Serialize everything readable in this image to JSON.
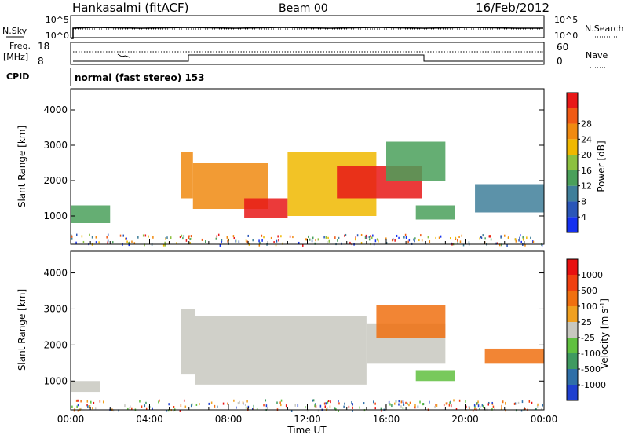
{
  "header": {
    "station": "Hankasalmi (fitACF)",
    "beam": "Beam 00",
    "date": "16/Feb/2012"
  },
  "top_panels": {
    "nsky_label": "N.Sky",
    "nsearch_label": "N.Search",
    "noise_tick_hi": "10^5",
    "noise_tick_lo": "10^0",
    "freq_label": "Freq.",
    "freq_unit": "[MHz]",
    "freq_tick_hi": "18",
    "freq_tick_lo": "8",
    "nave_label": "Nave",
    "nave_tick_hi": "60",
    "nave_tick_lo": "0",
    "cpid_label": "CPID",
    "cpid_text": "normal (fast stereo) 153"
  },
  "colors": {
    "velocity_ground": "#c8c8c0",
    "frame": "#000000"
  },
  "chart_data": [
    {
      "type": "heatmap",
      "panel": "power",
      "ylabel": "Slant Range [km]",
      "xlabel": "",
      "yticks": [
        "1000",
        "2000",
        "3000",
        "4000"
      ],
      "ylim": [
        200,
        4600
      ],
      "xlim": [
        0,
        24
      ],
      "colorbar": {
        "label": "Power [dB]",
        "ticks": [
          "4",
          "8",
          "12",
          "16",
          "20",
          "24",
          "28"
        ],
        "colors": [
          "#1430f0",
          "#2a56b8",
          "#3f7f9a",
          "#4aa05a",
          "#8cc040",
          "#f0b800",
          "#f08a10",
          "#f05a14",
          "#e81818"
        ]
      },
      "regions": [
        {
          "t0": 0.0,
          "t1": 2.0,
          "r0": 800,
          "r1": 1300,
          "level": 3
        },
        {
          "t0": 5.6,
          "t1": 6.2,
          "r0": 1500,
          "r1": 2800,
          "level": 6
        },
        {
          "t0": 6.2,
          "t1": 10.0,
          "r0": 1200,
          "r1": 2500,
          "level": 6
        },
        {
          "t0": 8.8,
          "t1": 11.0,
          "r0": 950,
          "r1": 1500,
          "level": 8
        },
        {
          "t0": 11.0,
          "t1": 15.5,
          "r0": 1000,
          "r1": 2800,
          "level": 5
        },
        {
          "t0": 13.5,
          "t1": 17.8,
          "r0": 1500,
          "r1": 2400,
          "level": 8
        },
        {
          "t0": 16.0,
          "t1": 19.0,
          "r0": 2000,
          "r1": 3100,
          "level": 3
        },
        {
          "t0": 17.5,
          "t1": 19.5,
          "r0": 900,
          "r1": 1300,
          "level": 3
        },
        {
          "t0": 20.5,
          "t1": 24.0,
          "r0": 1100,
          "r1": 1900,
          "level": 2
        }
      ]
    },
    {
      "type": "heatmap",
      "panel": "velocity",
      "ylabel": "Slant Range [km]",
      "xlabel": "Time UT",
      "xticks": [
        "00:00",
        "04:00",
        "08:00",
        "12:00",
        "16:00",
        "20:00",
        "00:00"
      ],
      "yticks": [
        "1000",
        "2000",
        "3000",
        "4000"
      ],
      "ylim": [
        200,
        4600
      ],
      "xlim": [
        0,
        24
      ],
      "colorbar": {
        "label": "Velocity [m s",
        "label_sup": "-1",
        "label_end": "]",
        "ticks": [
          "1000",
          "500",
          "100",
          "25",
          "-25",
          "-100",
          "-500",
          "-1000"
        ],
        "colors": [
          "#1f40d0",
          "#2f6fa8",
          "#3f9a60",
          "#60c040",
          "#c8c8c0",
          "#f0a020",
          "#f07010",
          "#f04010",
          "#e81010"
        ]
      },
      "regions": [
        {
          "t0": 0.0,
          "t1": 1.5,
          "r0": 700,
          "r1": 1000,
          "level": 4
        },
        {
          "t0": 5.6,
          "t1": 6.3,
          "r0": 1200,
          "r1": 3000,
          "level": 4
        },
        {
          "t0": 6.3,
          "t1": 15.0,
          "r0": 900,
          "r1": 2800,
          "level": 4
        },
        {
          "t0": 15.0,
          "t1": 19.0,
          "r0": 1500,
          "r1": 2600,
          "level": 4
        },
        {
          "t0": 15.5,
          "t1": 19.0,
          "r0": 2200,
          "r1": 3100,
          "level": 6
        },
        {
          "t0": 17.5,
          "t1": 19.5,
          "r0": 1000,
          "r1": 1300,
          "level": 3
        },
        {
          "t0": 21.0,
          "t1": 24.0,
          "r0": 1500,
          "r1": 1900,
          "level": 6
        }
      ]
    }
  ]
}
